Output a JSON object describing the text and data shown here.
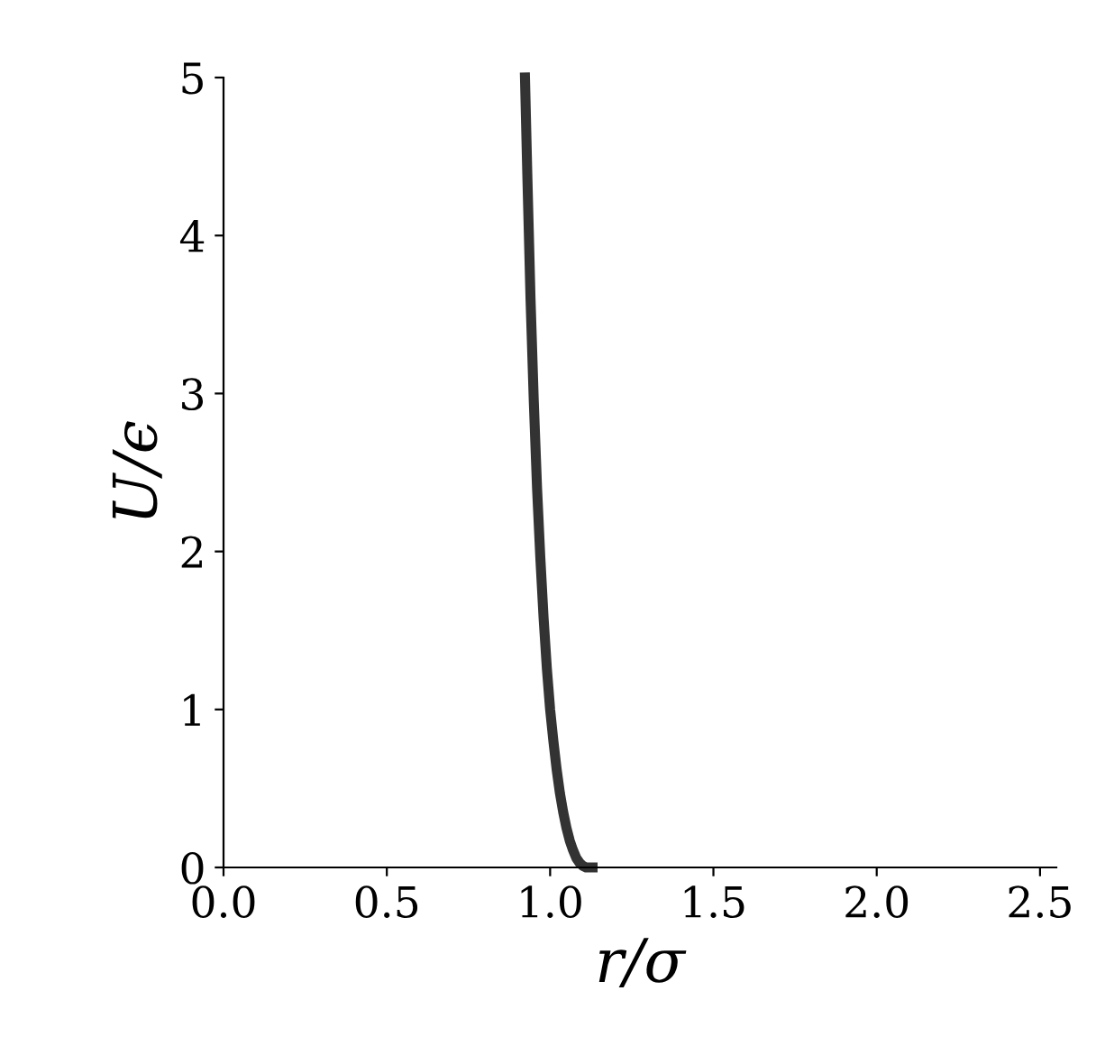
{
  "chart_data": {
    "type": "line",
    "xlabel": "r/σ",
    "ylabel": "U/ϵ",
    "series": [
      {
        "color": "#333333",
        "x": [
          0.923,
          0.93,
          0.94,
          0.95,
          0.96,
          0.97,
          0.98,
          0.99,
          1.0,
          1.01,
          1.02,
          1.03,
          1.04,
          1.05,
          1.06,
          1.07,
          1.08,
          1.09,
          1.1,
          1.11,
          1.12,
          1.13
        ],
        "values": [
          5.0,
          4.4,
          3.6,
          2.95,
          2.4,
          1.96,
          1.58,
          1.26,
          1.0,
          0.8,
          0.62,
          0.47,
          0.35,
          0.25,
          0.17,
          0.11,
          0.06,
          0.03,
          0.01,
          0.0,
          0.0,
          0.0
        ]
      }
    ],
    "xlim": [
      0,
      2.55
    ],
    "ylim": [
      0,
      5
    ],
    "xticks": [
      {
        "value": 0,
        "label": "0.0"
      },
      0.5,
      {
        "value": 1,
        "label": "1.0"
      },
      1.5,
      {
        "value": 2,
        "label": "2.0"
      },
      2.5
    ],
    "yticks": [
      0,
      1,
      2,
      3,
      4,
      5
    ],
    "grid": false,
    "legend": false,
    "marker": "none",
    "line_style": "solid"
  }
}
